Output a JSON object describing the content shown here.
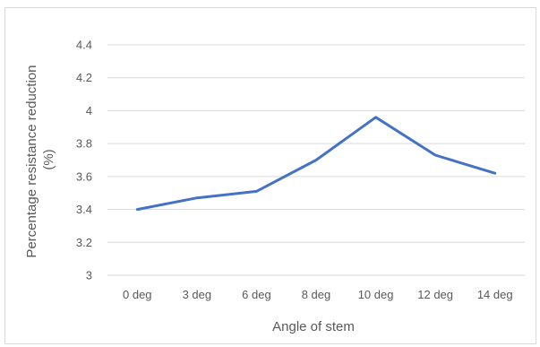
{
  "chart_data": {
    "type": "line",
    "categories": [
      "0 deg",
      "3 deg",
      "6 deg",
      "8 deg",
      "10 deg",
      "12 deg",
      "14 deg"
    ],
    "series": [
      {
        "values": [
          3.4,
          3.47,
          3.51,
          3.7,
          3.96,
          3.73,
          3.62
        ],
        "color": "#4472c4"
      }
    ],
    "xlabel": "Angle of stem",
    "ylabel_lines": [
      "Percentage resistance reduction",
      "(%)"
    ],
    "yticks": [
      "3",
      "3.2",
      "3.4",
      "3.6",
      "3.8",
      "4",
      "4.2",
      "4.4"
    ],
    "ylim": [
      3,
      4.4
    ],
    "grid": true
  }
}
